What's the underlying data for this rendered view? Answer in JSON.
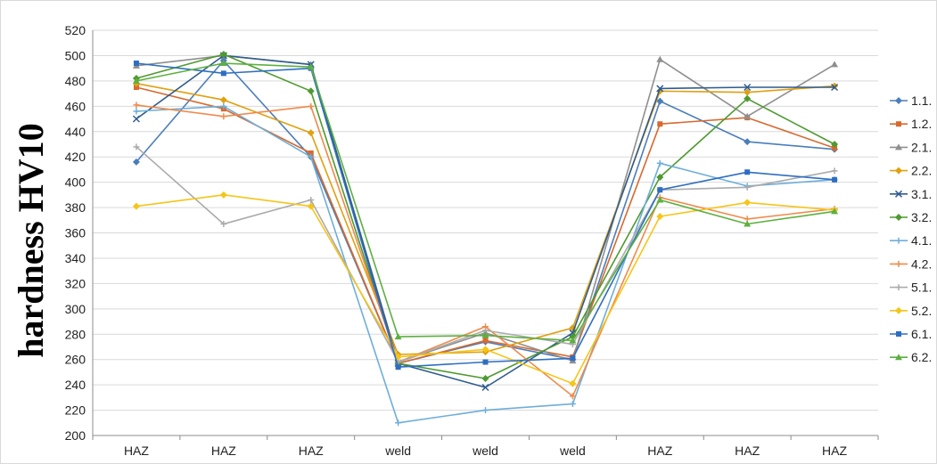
{
  "chart_data": {
    "type": "line",
    "ylabel": "hardness HV10",
    "xlabel": "",
    "ylim": [
      200,
      520
    ],
    "ytick_step": 20,
    "grid": true,
    "legend_position": "right",
    "categories": [
      "HAZ",
      "HAZ",
      "HAZ",
      "weld",
      "weld",
      "weld",
      "HAZ",
      "HAZ",
      "HAZ"
    ],
    "series": [
      {
        "name": "1.1.",
        "color": "#4A7EBB",
        "marker": "diamond",
        "values": [
          416,
          496,
          420,
          257,
          274,
          260,
          464,
          432,
          426
        ]
      },
      {
        "name": "1.2.",
        "color": "#D8692E",
        "marker": "square",
        "values": [
          475,
          458,
          423,
          257,
          275,
          262,
          446,
          451,
          427
        ]
      },
      {
        "name": "2.1.",
        "color": "#8F8F8F",
        "marker": "triangle",
        "values": [
          492,
          500,
          493,
          258,
          281,
          259,
          497,
          452,
          493
        ]
      },
      {
        "name": "2.2.",
        "color": "#E0A010",
        "marker": "diamond",
        "values": [
          478,
          465,
          439,
          264,
          266,
          285,
          472,
          471,
          476
        ]
      },
      {
        "name": "3.1.",
        "color": "#2F5C8F",
        "marker": "x",
        "values": [
          450,
          500,
          493,
          257,
          238,
          281,
          474,
          475,
          475
        ]
      },
      {
        "name": "3.2.",
        "color": "#4E9A2F",
        "marker": "diamond",
        "values": [
          482,
          501,
          472,
          257,
          245,
          278,
          404,
          466,
          430
        ]
      },
      {
        "name": "4.1.",
        "color": "#6EAED9",
        "marker": "plus",
        "values": [
          456,
          460,
          420,
          210,
          220,
          225,
          415,
          397,
          402
        ]
      },
      {
        "name": "4.2.",
        "color": "#F08A4B",
        "marker": "plus",
        "values": [
          461,
          452,
          460,
          258,
          286,
          231,
          388,
          371,
          379
        ]
      },
      {
        "name": "5.1.",
        "color": "#ABABAB",
        "marker": "plus",
        "values": [
          428,
          367,
          386,
          258,
          283,
          272,
          394,
          396,
          409
        ]
      },
      {
        "name": "5.2.",
        "color": "#F5C518",
        "marker": "diamond",
        "values": [
          381,
          390,
          381,
          262,
          268,
          241,
          373,
          384,
          378
        ]
      },
      {
        "name": "6.1.",
        "color": "#2E6EC1",
        "marker": "square",
        "values": [
          494,
          486,
          490,
          254,
          258,
          261,
          394,
          408,
          402
        ]
      },
      {
        "name": "6.2.",
        "color": "#5DB040",
        "marker": "triangle",
        "values": [
          480,
          494,
          491,
          278,
          279,
          275,
          386,
          367,
          377
        ]
      }
    ]
  }
}
